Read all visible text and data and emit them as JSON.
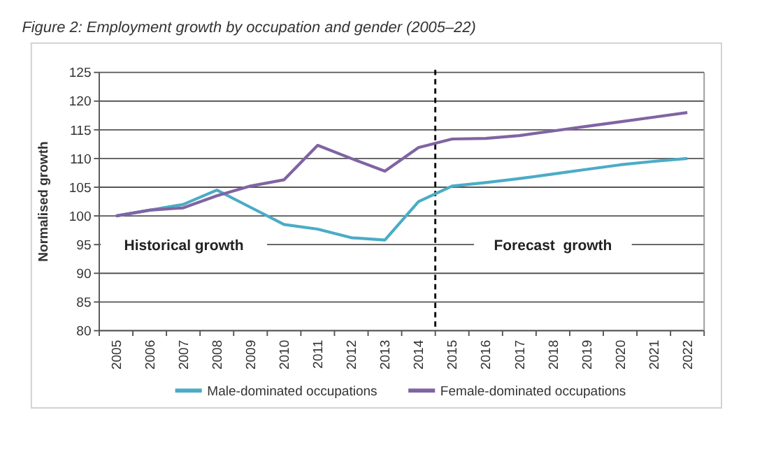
{
  "chart_data": {
    "type": "line",
    "title": "Figure 2: Employment growth by occupation and gender (2005–22)",
    "ylabel": "Normalised growth",
    "categories": [
      "2005",
      "2006",
      "2007",
      "2008",
      "2009",
      "2010",
      "2011",
      "2012",
      "2013",
      "2014",
      "2015",
      "2016",
      "2017",
      "2018",
      "2019",
      "2020",
      "2021",
      "2022"
    ],
    "series": [
      {
        "name": "Male-dominated occupations",
        "color": "#4bacc6",
        "values": [
          100,
          101,
          102,
          104.5,
          101.5,
          98.5,
          97.7,
          96.2,
          95.8,
          102.5,
          105.2,
          105.8,
          106.5,
          107.3,
          108.1,
          108.9,
          109.5,
          110
        ]
      },
      {
        "name": "Female-dominated occupations",
        "color": "#8064a2",
        "values": [
          100,
          101,
          101.4,
          103.5,
          105.2,
          106.3,
          112.3,
          110,
          107.8,
          111.9,
          113.4,
          113.5,
          114,
          114.8,
          115.6,
          116.4,
          117.2,
          118
        ]
      }
    ],
    "ylim": [
      80,
      125
    ],
    "yticks": [
      80,
      85,
      90,
      95,
      100,
      105,
      110,
      115,
      120,
      125
    ],
    "grid": "y",
    "legend": "bottom",
    "marker": "none",
    "line_style": "solid",
    "annotations": [
      "Historical growth",
      "Forecast  growth"
    ]
  }
}
